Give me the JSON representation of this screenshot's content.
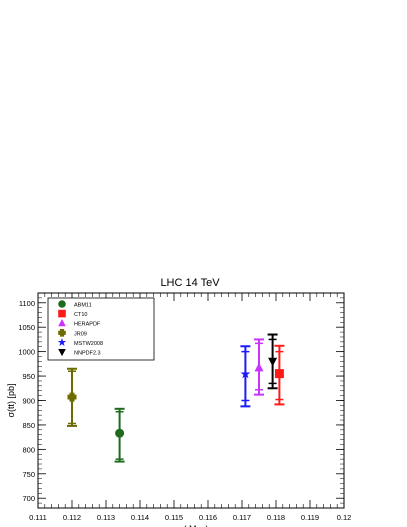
{
  "chart_data": {
    "type": "scatter",
    "title": "LHC 14 TeV",
    "xlabel_main": "α",
    "xlabel_sub": "S",
    "xlabel_tail": "( M",
    "xlabel_sub2": "Z",
    "xlabel_end": ")",
    "ylabel": "σ(tt) [pb]",
    "xlim": [
      0.111,
      0.12
    ],
    "ylim": [
      680,
      1120
    ],
    "xticks": [
      "0.111",
      "0.112",
      "0.113",
      "0.114",
      "0.115",
      "0.116",
      "0.117",
      "0.118",
      "0.119",
      "0.12"
    ],
    "yticks": [
      "700",
      "750",
      "800",
      "850",
      "900",
      "950",
      "1000",
      "1050",
      "1100"
    ],
    "legend_position": "top-left",
    "series": [
      {
        "name": "ABM11",
        "color": "#1e6b1e",
        "marker": "circle",
        "x": 0.1134,
        "y": 833,
        "err_outer": [
          775,
          883
        ],
        "err_inner": [
          780,
          877
        ]
      },
      {
        "name": "CT10",
        "color": "#ff1a1a",
        "marker": "square",
        "x": 0.1181,
        "y": 955,
        "err_outer": [
          892,
          1012
        ],
        "err_inner": [
          902,
          1000
        ]
      },
      {
        "name": "HERAPDF",
        "color": "#cc33ff",
        "marker": "triangle-up",
        "x": 0.1175,
        "y": 967,
        "err_outer": [
          912,
          1025
        ],
        "err_inner": [
          922,
          1017
        ]
      },
      {
        "name": "JR09",
        "color": "#6b6b00",
        "marker": "cross",
        "x": 0.112,
        "y": 907,
        "err_outer": [
          848,
          965
        ],
        "err_inner": [
          853,
          960
        ]
      },
      {
        "name": "MSTW2008",
        "color": "#1a1aff",
        "marker": "star",
        "x": 0.1171,
        "y": 954,
        "err_outer": [
          888,
          1011
        ],
        "err_inner": [
          900,
          1000
        ]
      },
      {
        "name": "NNPDF2.3",
        "color": "#000000",
        "marker": "triangle-down",
        "x": 0.1179,
        "y": 980,
        "err_outer": [
          925,
          1035
        ],
        "err_inner": [
          935,
          1025
        ]
      }
    ]
  }
}
